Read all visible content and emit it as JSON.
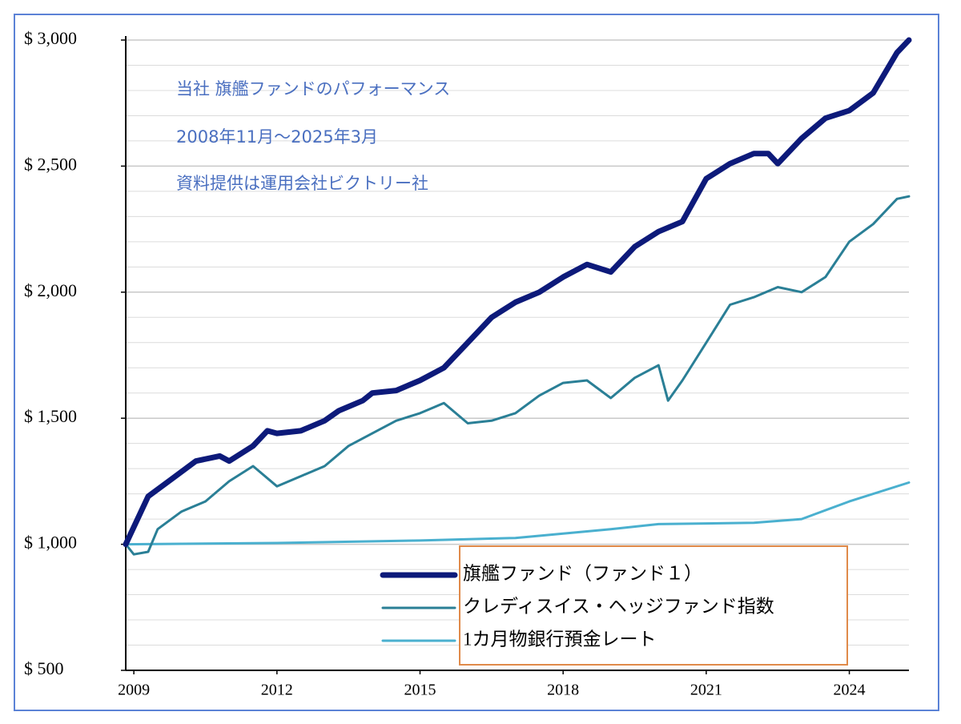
{
  "chart_data": {
    "type": "line",
    "annotations": [
      "当社 旗艦ファンドのパフォーマンス",
      "2008年11月～2025年3月",
      "資料提供は運用会社ビクトリー社"
    ],
    "xlim": [
      2008.83,
      2025.25
    ],
    "xticks": [
      2009,
      2012,
      2015,
      2018,
      2021,
      2024
    ],
    "ylim": [
      500,
      3000
    ],
    "yticks": [
      {
        "value": 500,
        "label": "$ 500"
      },
      {
        "value": 1000,
        "label": "$ 1,000"
      },
      {
        "value": 1500,
        "label": "$ 1,500"
      },
      {
        "value": 2000,
        "label": "$ 2,000"
      },
      {
        "value": 2500,
        "label": "$ 2,500"
      },
      {
        "value": 3000,
        "label": "$ 3,000"
      }
    ],
    "ygrid": [
      600,
      700,
      800,
      900,
      1000,
      1100,
      1200,
      1300,
      1400,
      1500,
      1600,
      1700,
      1800,
      1900,
      2000,
      2100,
      2200,
      2300,
      2400,
      2500,
      2600,
      2700,
      2800,
      2900
    ],
    "series": [
      {
        "name": "旗艦ファンド（ファンド１）",
        "color": "#0d1a7a",
        "width": 7,
        "x": [
          2008.83,
          2009.3,
          2009.8,
          2010.3,
          2010.8,
          2011.0,
          2011.5,
          2011.8,
          2012.0,
          2012.5,
          2013.0,
          2013.3,
          2013.8,
          2014.0,
          2014.5,
          2015.0,
          2015.5,
          2016.0,
          2016.5,
          2017.0,
          2017.5,
          2018.0,
          2018.5,
          2019.0,
          2019.5,
          2020.0,
          2020.5,
          2021.0,
          2021.5,
          2022.0,
          2022.3,
          2022.5,
          2023.0,
          2023.5,
          2024.0,
          2024.5,
          2025.0,
          2025.25
        ],
        "values": [
          1000,
          1190,
          1260,
          1330,
          1350,
          1330,
          1390,
          1450,
          1440,
          1450,
          1490,
          1530,
          1570,
          1600,
          1610,
          1650,
          1700,
          1800,
          1900,
          1960,
          2000,
          2060,
          2110,
          2080,
          2180,
          2240,
          2280,
          2450,
          2510,
          2550,
          2550,
          2510,
          2610,
          2690,
          2720,
          2790,
          2950,
          3000
        ]
      },
      {
        "name": "クレディスイス・ヘッジファンド指数",
        "color": "#2a7f96",
        "width": 3,
        "x": [
          2008.83,
          2009.0,
          2009.3,
          2009.5,
          2010.0,
          2010.5,
          2011.0,
          2011.5,
          2012.0,
          2012.5,
          2013.0,
          2013.5,
          2014.0,
          2014.5,
          2015.0,
          2015.5,
          2016.0,
          2016.5,
          2017.0,
          2017.5,
          2018.0,
          2018.5,
          2019.0,
          2019.5,
          2020.0,
          2020.2,
          2020.5,
          2021.0,
          2021.5,
          2022.0,
          2022.5,
          2023.0,
          2023.5,
          2024.0,
          2024.5,
          2025.0,
          2025.25
        ],
        "values": [
          1000,
          960,
          970,
          1060,
          1130,
          1170,
          1250,
          1310,
          1230,
          1270,
          1310,
          1390,
          1440,
          1490,
          1520,
          1560,
          1480,
          1490,
          1520,
          1590,
          1640,
          1650,
          1580,
          1660,
          1710,
          1570,
          1650,
          1800,
          1950,
          1980,
          2020,
          2000,
          2060,
          2200,
          2270,
          2370,
          2380
        ]
      },
      {
        "name": "1カ月物銀行預金レート",
        "color": "#4ab0cf",
        "width": 3,
        "x": [
          2008.83,
          2012,
          2015,
          2017,
          2019,
          2020,
          2022,
          2023,
          2024,
          2025.25
        ],
        "values": [
          1000,
          1005,
          1015,
          1025,
          1060,
          1080,
          1085,
          1100,
          1170,
          1245
        ]
      }
    ]
  }
}
